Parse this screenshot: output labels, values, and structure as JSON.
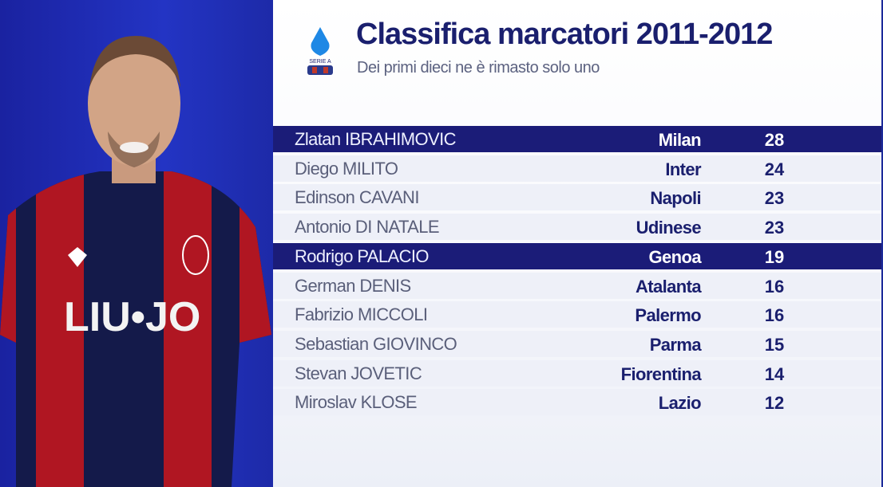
{
  "header": {
    "logo": "Serie A",
    "title": "Classifica marcatori 2011-2012",
    "subtitle": "Dei primi dieci ne è rimasto solo uno"
  },
  "player_image": {
    "shirt_sponsor": "LIU•JO",
    "colors": {
      "red": "#b01622",
      "navy": "#141a4a"
    }
  },
  "colors": {
    "highlight": "#1b1c78",
    "title": "#1a1f6e",
    "background_left": "#2334c4"
  },
  "table": {
    "rows": [
      {
        "name": "Zlatan IBRAHIMOVIC",
        "team": "Milan",
        "goals": "28",
        "highlighted": true
      },
      {
        "name": "Diego MILITO",
        "team": "Inter",
        "goals": "24",
        "highlighted": false
      },
      {
        "name": "Edinson CAVANI",
        "team": "Napoli",
        "goals": "23",
        "highlighted": false
      },
      {
        "name": "Antonio DI NATALE",
        "team": "Udinese",
        "goals": "23",
        "highlighted": false
      },
      {
        "name": "Rodrigo PALACIO",
        "team": "Genoa",
        "goals": "19",
        "highlighted": true
      },
      {
        "name": "German DENIS",
        "team": "Atalanta",
        "goals": "16",
        "highlighted": false
      },
      {
        "name": "Fabrizio MICCOLI",
        "team": "Palermo",
        "goals": "16",
        "highlighted": false
      },
      {
        "name": "Sebastian GIOVINCO",
        "team": "Parma",
        "goals": "15",
        "highlighted": false
      },
      {
        "name": "Stevan JOVETIC",
        "team": "Fiorentina",
        "goals": "14",
        "highlighted": false
      },
      {
        "name": "Miroslav KLOSE",
        "team": "Lazio",
        "goals": "12",
        "highlighted": false
      }
    ]
  }
}
